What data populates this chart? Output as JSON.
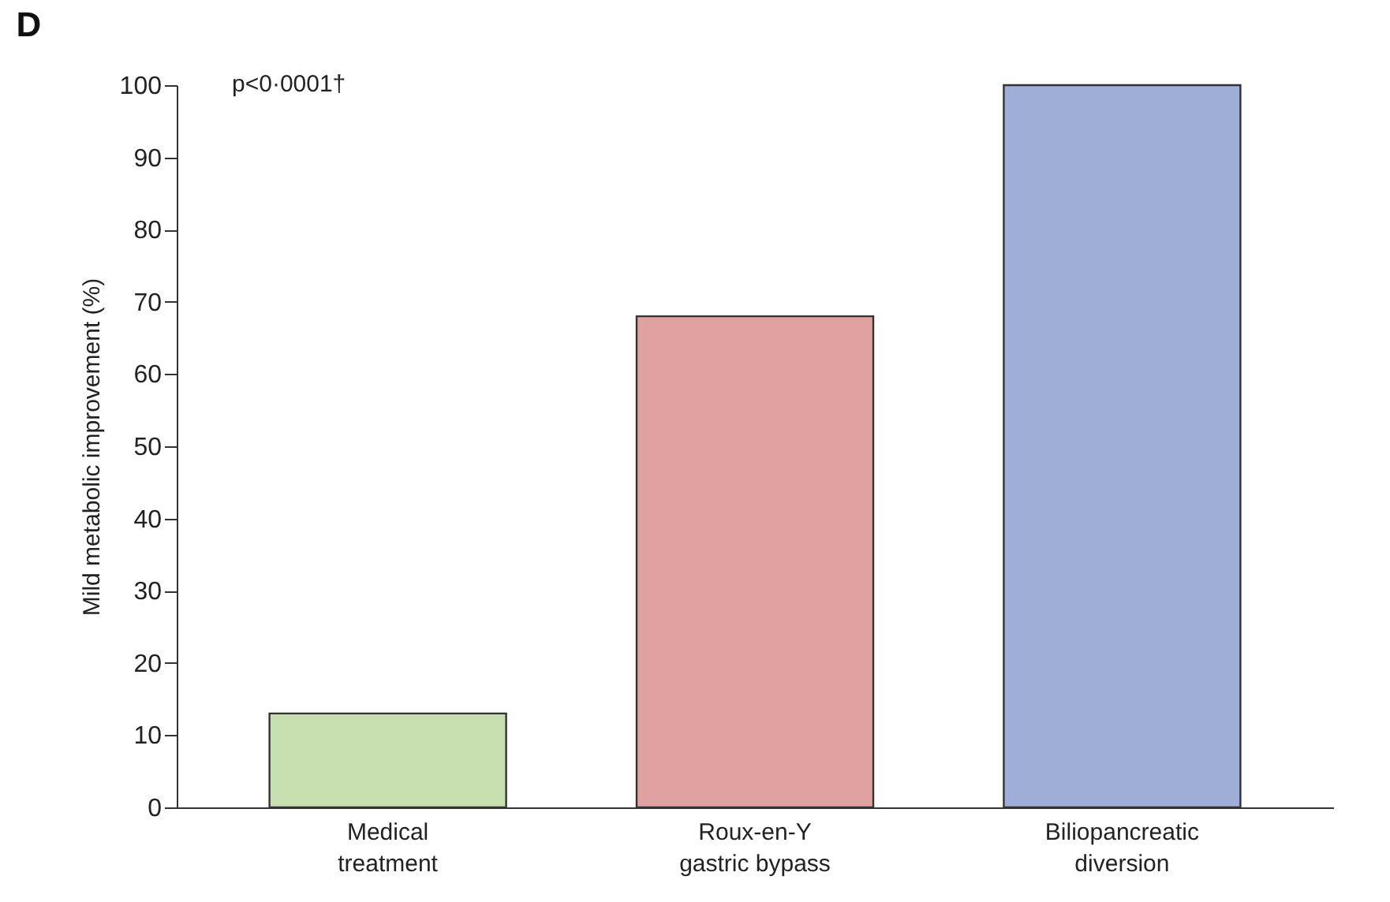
{
  "chart_data": {
    "type": "bar",
    "title": "D",
    "ylabel": "Mild metabolic improvement (%)",
    "categories": [
      "Medical\ntreatment",
      "Roux-en-Y\ngastric bypass",
      "Biliopancreatic\ndiversion"
    ],
    "values": [
      13,
      68,
      100
    ],
    "colors": [
      "#c8dfb0",
      "#e0a2a0",
      "#9eaed6"
    ],
    "ylim": [
      0,
      100
    ],
    "yticks": [
      0,
      10,
      20,
      30,
      40,
      50,
      60,
      70,
      80,
      90,
      100
    ],
    "grid": false,
    "annotations": [
      "p<0·0001†"
    ]
  }
}
